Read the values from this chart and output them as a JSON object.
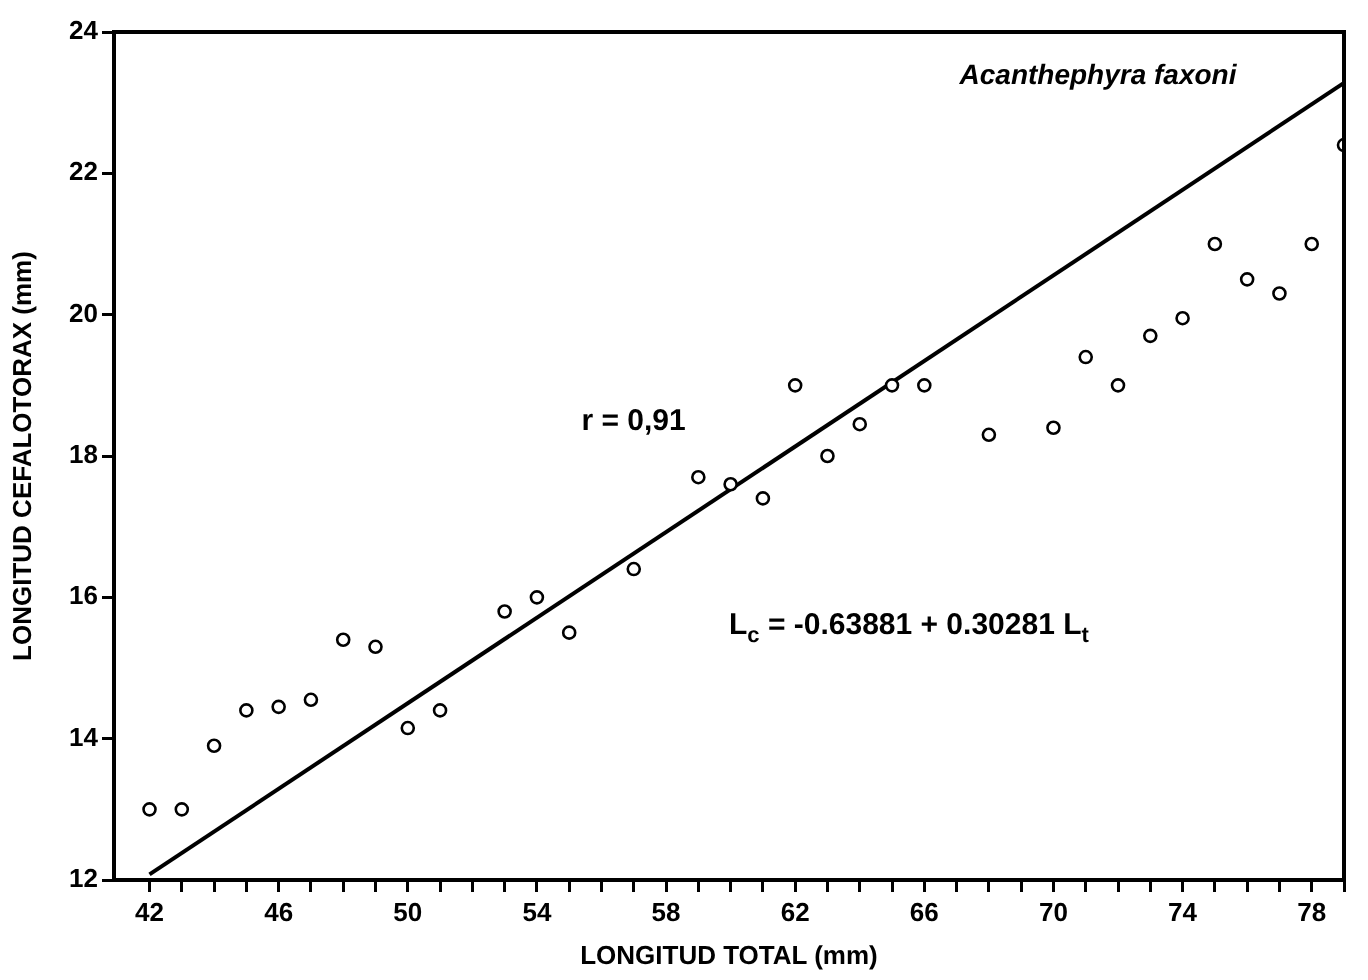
{
  "chart_data": {
    "type": "scatter",
    "title": "Acanthephyra faxoni",
    "xlabel": "LONGITUD TOTAL (mm)",
    "ylabel": "LONGITUD CEFALOTORAX (mm)",
    "annotations": [
      "r = 0,91",
      "L$_{c}$ = -0.63881 + 0.30281 L$_{t}$"
    ],
    "xlim": [
      40.9,
      79
    ],
    "ylim": [
      12,
      24
    ],
    "xticks": [
      42,
      {
        "value": 43,
        "label": null
      },
      {
        "value": 44,
        "label": null
      },
      {
        "value": 45,
        "label": null
      },
      46,
      {
        "value": 47,
        "label": null
      },
      {
        "value": 48,
        "label": null
      },
      {
        "value": 49,
        "label": null
      },
      50,
      {
        "value": 51,
        "label": null
      },
      {
        "value": 52,
        "label": null
      },
      {
        "value": 53,
        "label": null
      },
      54,
      {
        "value": 55,
        "label": null
      },
      {
        "value": 56,
        "label": null
      },
      {
        "value": 57,
        "label": null
      },
      58,
      {
        "value": 59,
        "label": null
      },
      {
        "value": 60,
        "label": null
      },
      {
        "value": 61,
        "label": null
      },
      62,
      {
        "value": 63,
        "label": null
      },
      {
        "value": 64,
        "label": null
      },
      {
        "value": 65,
        "label": null
      },
      66,
      {
        "value": 67,
        "label": null
      },
      {
        "value": 68,
        "label": null
      },
      {
        "value": 69,
        "label": null
      },
      70,
      {
        "value": 71,
        "label": null
      },
      {
        "value": 72,
        "label": null
      },
      {
        "value": 73,
        "label": null
      },
      74,
      {
        "value": 75,
        "label": null
      },
      {
        "value": 76,
        "label": null
      },
      {
        "value": 77,
        "label": null
      },
      78,
      {
        "value": 79,
        "label": null
      }
    ],
    "yticks": [
      12,
      14,
      16,
      18,
      20,
      22,
      24
    ],
    "grid": false,
    "legend": false,
    "marker": "circle",
    "series": [
      {
        "color": "#000000",
        "x": [
          42,
          43,
          44,
          45,
          46,
          47,
          48,
          49,
          50,
          51,
          53,
          54,
          55,
          57,
          59,
          60,
          61,
          62,
          63,
          64,
          65,
          66,
          68,
          70,
          71,
          72,
          73,
          74,
          75,
          76,
          77,
          78,
          79
        ],
        "values": [
          13.0,
          13.0,
          13.9,
          14.4,
          14.45,
          14.55,
          15.4,
          15.3,
          14.15,
          14.4,
          15.8,
          16.0,
          15.5,
          16.4,
          17.7,
          17.6,
          17.4,
          19.0,
          18.0,
          18.45,
          19.0,
          19.0,
          18.3,
          18.4,
          19.4,
          19.0,
          19.7,
          19.95,
          21.0,
          20.5,
          20.3,
          21.0,
          22.4
        ]
      },
      {
        "type": "line",
        "color": "#000000",
        "line_style": "solid",
        "marker": "none",
        "x": [
          42,
          79
        ],
        "values": [
          12.08,
          23.28
        ]
      }
    ]
  }
}
